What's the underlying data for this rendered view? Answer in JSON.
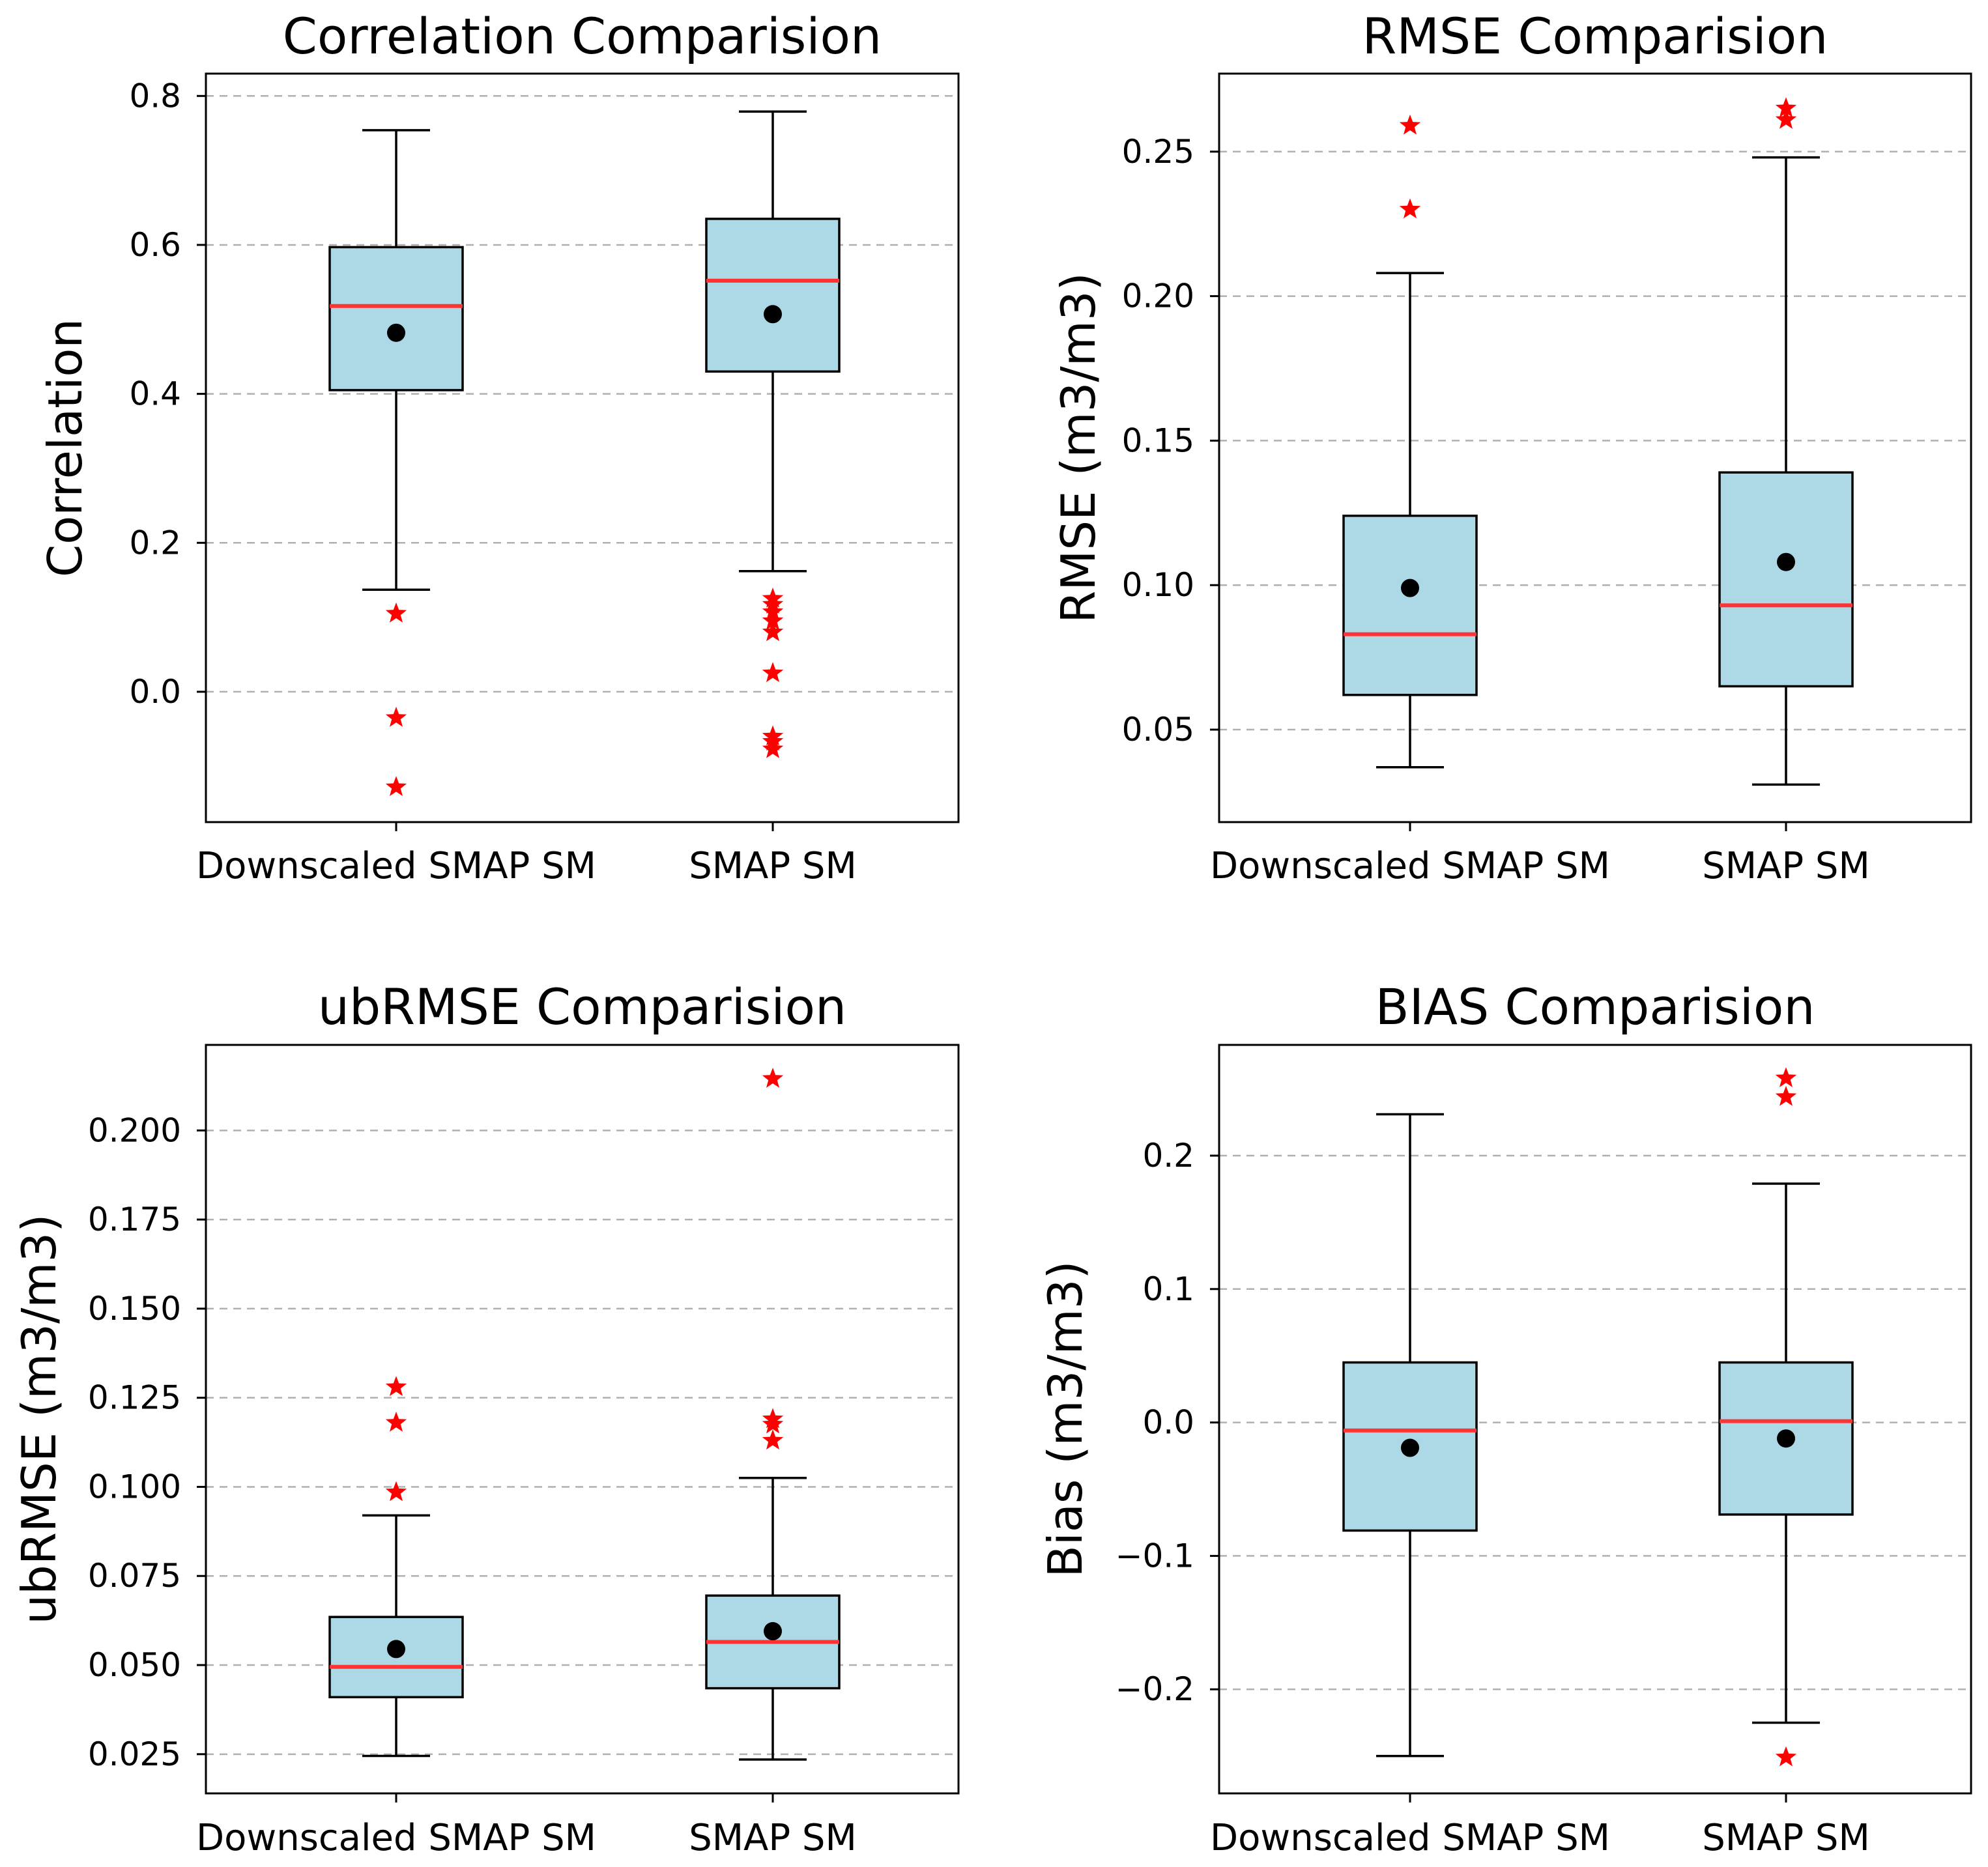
{
  "chart_data": [
    {
      "type": "box",
      "title": "Correlation Comparision",
      "xlabel": "",
      "ylabel": "Correlation",
      "ylim": [
        -0.175,
        0.83
      ],
      "yticks": [
        0.0,
        0.2,
        0.4,
        0.6,
        0.8
      ],
      "ytick_labels": [
        "0.0",
        "0.2",
        "0.4",
        "0.6",
        "0.8"
      ],
      "grid": "y-dashed",
      "categories": [
        "Downscaled SMAP SM",
        "SMAP SM"
      ],
      "boxes": [
        {
          "whisker_low": 0.137,
          "q1": 0.405,
          "median": 0.518,
          "q3": 0.597,
          "whisker_high": 0.754,
          "mean": 0.482,
          "outliers": [
            0.105,
            -0.035,
            -0.128
          ]
        },
        {
          "whisker_low": 0.162,
          "q1": 0.43,
          "median": 0.552,
          "q3": 0.635,
          "whisker_high": 0.779,
          "mean": 0.507,
          "outliers": [
            0.125,
            0.117,
            0.107,
            0.095,
            0.08,
            0.025,
            -0.06,
            -0.067,
            -0.077
          ]
        }
      ]
    },
    {
      "type": "box",
      "title": "RMSE Comparision",
      "xlabel": "",
      "ylabel": "RMSE (m3/m3)",
      "ylim": [
        0.018,
        0.277
      ],
      "yticks": [
        0.05,
        0.1,
        0.15,
        0.2,
        0.25
      ],
      "ytick_labels": [
        "0.05",
        "0.10",
        "0.15",
        "0.20",
        "0.25"
      ],
      "grid": "y-dashed",
      "categories": [
        "Downscaled SMAP SM",
        "SMAP SM"
      ],
      "boxes": [
        {
          "whisker_low": 0.037,
          "q1": 0.062,
          "median": 0.083,
          "q3": 0.124,
          "whisker_high": 0.208,
          "mean": 0.099,
          "outliers": [
            0.259,
            0.23
          ]
        },
        {
          "whisker_low": 0.031,
          "q1": 0.065,
          "median": 0.093,
          "q3": 0.139,
          "whisker_high": 0.248,
          "mean": 0.108,
          "outliers": [
            0.265,
            0.261
          ]
        }
      ]
    },
    {
      "type": "box",
      "title": "ubRMSE Comparision",
      "xlabel": "",
      "ylabel": "ubRMSE (m3/m3)",
      "ylim": [
        0.014,
        0.224
      ],
      "yticks": [
        0.025,
        0.05,
        0.075,
        0.1,
        0.125,
        0.15,
        0.175,
        0.2
      ],
      "ytick_labels": [
        "0.025",
        "0.050",
        "0.075",
        "0.100",
        "0.125",
        "0.150",
        "0.175",
        "0.200"
      ],
      "grid": "y-dashed",
      "categories": [
        "Downscaled SMAP SM",
        "SMAP SM"
      ],
      "boxes": [
        {
          "whisker_low": 0.0245,
          "q1": 0.041,
          "median": 0.0495,
          "q3": 0.0635,
          "whisker_high": 0.092,
          "mean": 0.0545,
          "outliers": [
            0.128,
            0.118,
            0.0985
          ]
        },
        {
          "whisker_low": 0.0235,
          "q1": 0.0435,
          "median": 0.0565,
          "q3": 0.0695,
          "whisker_high": 0.1025,
          "mean": 0.0595,
          "outliers": [
            0.2145,
            0.119,
            0.1175,
            0.113
          ]
        }
      ]
    },
    {
      "type": "box",
      "title": "BIAS Comparision",
      "xlabel": "",
      "ylabel": "Bias (m3/m3)",
      "ylim": [
        -0.278,
        0.283
      ],
      "yticks": [
        -0.2,
        -0.1,
        0.0,
        0.1,
        0.2
      ],
      "ytick_labels": [
        "−0.2",
        "−0.1",
        "0.0",
        "0.1",
        "0.2"
      ],
      "grid": "y-dashed",
      "categories": [
        "Downscaled SMAP SM",
        "SMAP SM"
      ],
      "boxes": [
        {
          "whisker_low": -0.25,
          "q1": -0.081,
          "median": -0.006,
          "q3": 0.045,
          "whisker_high": 0.231,
          "mean": -0.019,
          "outliers": []
        },
        {
          "whisker_low": -0.225,
          "q1": -0.069,
          "median": 0.001,
          "q3": 0.045,
          "whisker_high": 0.179,
          "mean": -0.012,
          "outliers": [
            0.258,
            0.244,
            -0.251
          ]
        }
      ]
    }
  ],
  "colors": {
    "box_fill": "#add8e6",
    "median": "#ff3333",
    "outlier": "#ff0000",
    "mean": "#000000",
    "grid": "#b0b0b0"
  }
}
